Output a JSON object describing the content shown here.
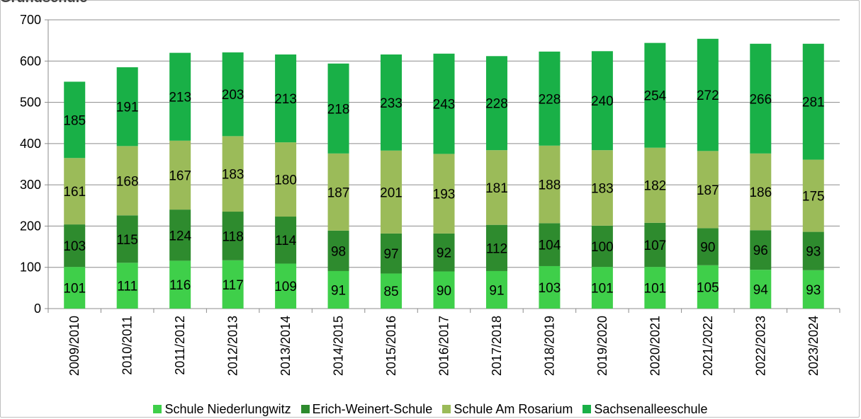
{
  "title_fragment": "Grundschule",
  "chart_data": {
    "type": "bar",
    "stacked": true,
    "categories": [
      "2009/2010",
      "2010/2011",
      "2011/2012",
      "2012/2013",
      "2013/2014",
      "2014/2015",
      "2015/2016",
      "2016/2017",
      "2017/2018",
      "2018/2019",
      "2019/2020",
      "2020/2021",
      "2021/2022",
      "2022/2023",
      "2023/2024"
    ],
    "series": [
      {
        "name": "Schule Niederlungwitz",
        "color": "#3fcf4a",
        "values": [
          101,
          111,
          116,
          117,
          109,
          91,
          85,
          90,
          91,
          103,
          101,
          101,
          105,
          94,
          93
        ]
      },
      {
        "name": "Erich-Weinert-Schule",
        "color": "#2e8b2e",
        "values": [
          103,
          115,
          124,
          118,
          114,
          98,
          97,
          92,
          112,
          104,
          100,
          107,
          90,
          96,
          93
        ]
      },
      {
        "name": "Schule Am Rosarium",
        "color": "#9bbb59",
        "values": [
          161,
          168,
          167,
          183,
          180,
          187,
          201,
          193,
          181,
          188,
          183,
          182,
          187,
          186,
          175
        ]
      },
      {
        "name": "Sachsenalleeschule",
        "color": "#19b047",
        "values": [
          185,
          191,
          213,
          203,
          213,
          218,
          233,
          243,
          228,
          228,
          240,
          254,
          272,
          266,
          281
        ]
      }
    ],
    "ylim": [
      0,
      700
    ],
    "yticks": [
      0,
      100,
      200,
      300,
      400,
      500,
      600,
      700
    ],
    "grid": true,
    "legend": "bottom",
    "data_labels": true
  }
}
